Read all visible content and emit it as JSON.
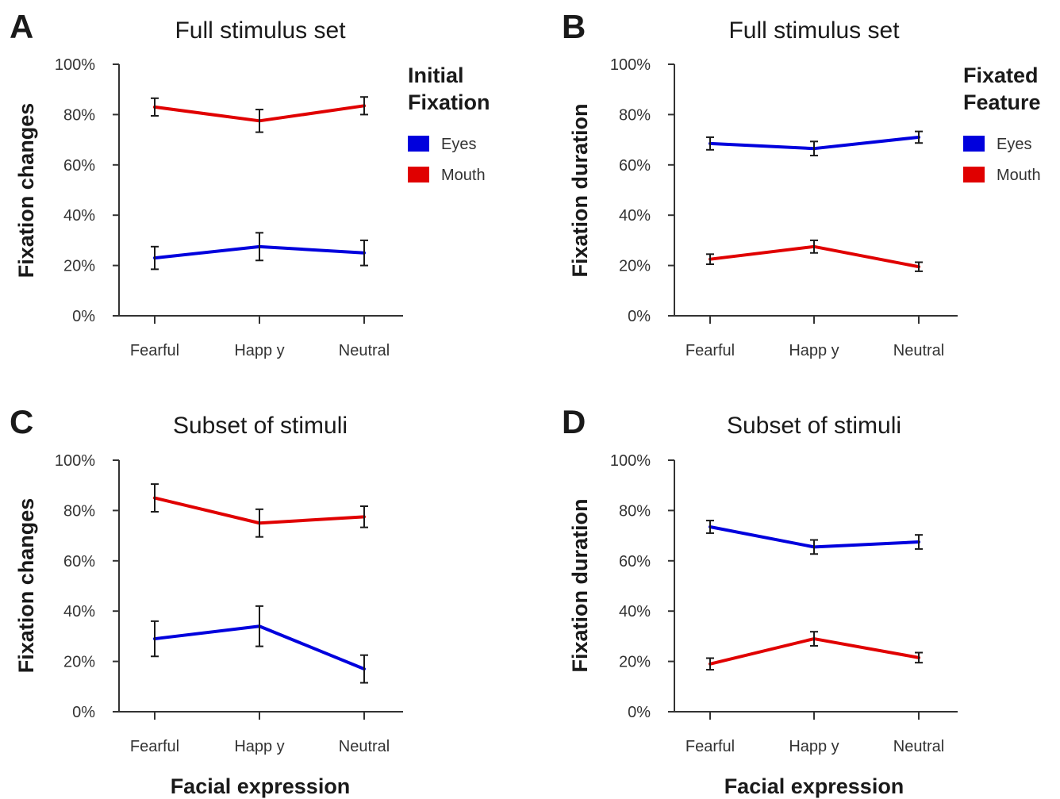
{
  "chart_data": [
    {
      "id": "A",
      "panel_letter": "A",
      "type": "line",
      "title": "Full stimulus set",
      "ylabel": "Fixation changes",
      "xlabel": "",
      "categories": [
        "Fearful",
        "Happy",
        "Neutral"
      ],
      "category_labels": [
        "Fearful",
        "Happ y",
        "Neutral"
      ],
      "ylim": [
        0,
        100
      ],
      "yticks": [
        0,
        20,
        40,
        60,
        80,
        100
      ],
      "ytick_labels": [
        "0%",
        "20%",
        "40%",
        "60%",
        "80%",
        "100%"
      ],
      "legend": {
        "title": [
          "Initial",
          "Fixation"
        ],
        "position": "right"
      },
      "grid": false,
      "series": [
        {
          "name": "Eyes",
          "color": "#0000dd",
          "values": [
            23,
            27.5,
            25
          ],
          "error": [
            4.5,
            5.5,
            5
          ]
        },
        {
          "name": "Mouth",
          "color": "#e00000",
          "values": [
            83,
            77.5,
            83.5
          ],
          "error": [
            3.5,
            4.5,
            3.5
          ]
        }
      ]
    },
    {
      "id": "B",
      "panel_letter": "B",
      "type": "line",
      "title": "Full stimulus set",
      "ylabel": "Fixation duration",
      "xlabel": "",
      "categories": [
        "Fearful",
        "Happy",
        "Neutral"
      ],
      "category_labels": [
        "Fearful",
        "Happ y",
        "Neutral"
      ],
      "ylim": [
        0,
        100
      ],
      "yticks": [
        0,
        20,
        40,
        60,
        80,
        100
      ],
      "ytick_labels": [
        "0%",
        "20%",
        "40%",
        "60%",
        "80%",
        "100%"
      ],
      "legend": {
        "title": [
          "Fixated",
          "Feature"
        ],
        "position": "right"
      },
      "grid": false,
      "series": [
        {
          "name": "Eyes",
          "color": "#0000dd",
          "values": [
            68.5,
            66.5,
            71
          ],
          "error": [
            2.5,
            2.8,
            2.3
          ]
        },
        {
          "name": "Mouth",
          "color": "#e00000",
          "values": [
            22.5,
            27.5,
            19.5
          ],
          "error": [
            2,
            2.5,
            1.8
          ]
        }
      ]
    },
    {
      "id": "C",
      "panel_letter": "C",
      "type": "line",
      "title": "Subset of stimuli",
      "ylabel": "Fixation changes",
      "xlabel": "Facial expression",
      "categories": [
        "Fearful",
        "Happy",
        "Neutral"
      ],
      "category_labels": [
        "Fearful",
        "Happ y",
        "Neutral"
      ],
      "ylim": [
        0,
        100
      ],
      "yticks": [
        0,
        20,
        40,
        60,
        80,
        100
      ],
      "ytick_labels": [
        "0%",
        "20%",
        "40%",
        "60%",
        "80%",
        "100%"
      ],
      "grid": false,
      "series": [
        {
          "name": "Eyes",
          "color": "#0000dd",
          "values": [
            29,
            34,
            17
          ],
          "error": [
            7,
            8,
            5.5
          ]
        },
        {
          "name": "Mouth",
          "color": "#e00000",
          "values": [
            85,
            75,
            77.5
          ],
          "error": [
            5.5,
            5.5,
            4.2
          ]
        }
      ]
    },
    {
      "id": "D",
      "panel_letter": "D",
      "type": "line",
      "title": "Subset of stimuli",
      "ylabel": "Fixation duration",
      "xlabel": "Facial expression",
      "categories": [
        "Fearful",
        "Happy",
        "Neutral"
      ],
      "category_labels": [
        "Fearful",
        "Happ y",
        "Neutral"
      ],
      "ylim": [
        0,
        100
      ],
      "yticks": [
        0,
        20,
        40,
        60,
        80,
        100
      ],
      "ytick_labels": [
        "0%",
        "20%",
        "40%",
        "60%",
        "80%",
        "100%"
      ],
      "grid": false,
      "series": [
        {
          "name": "Eyes",
          "color": "#0000dd",
          "values": [
            73.5,
            65.5,
            67.5
          ],
          "error": [
            2.5,
            2.8,
            2.8
          ]
        },
        {
          "name": "Mouth",
          "color": "#e00000",
          "values": [
            19,
            29,
            21.5
          ],
          "error": [
            2.3,
            2.8,
            2
          ]
        }
      ]
    }
  ]
}
